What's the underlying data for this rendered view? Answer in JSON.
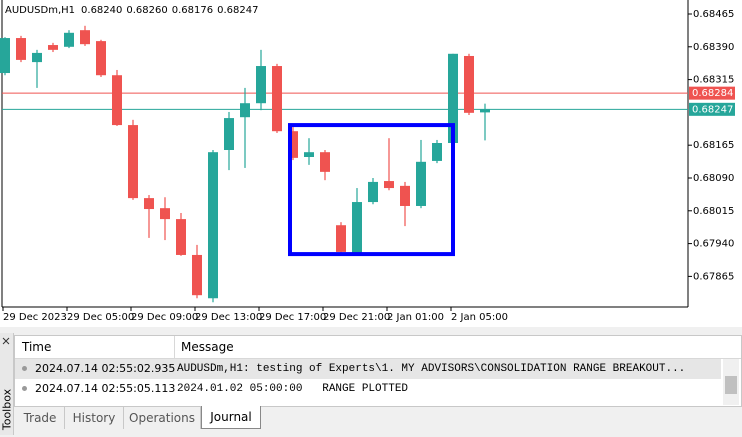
{
  "chart_data": {
    "type": "candlestick",
    "title": "AUDUSDm,H1",
    "ohlc_label": [
      "0.68240",
      "0.68260",
      "0.68176",
      "0.68247"
    ],
    "categories": [
      "29 Dec 2023",
      null,
      null,
      null,
      "29 Dec 05:00",
      null,
      null,
      null,
      "29 Dec 09:00",
      null,
      null,
      null,
      "29 Dec 13:00",
      null,
      null,
      null,
      "29 Dec 17:00",
      null,
      null,
      null,
      "29 Dec 21:00",
      null,
      null,
      null,
      "2 Jan 01:00",
      null,
      null,
      null,
      "2 Jan 05:00",
      null,
      null
    ],
    "open": [
      0.6833,
      0.6841,
      0.68355,
      0.68394,
      0.6839,
      0.68428,
      0.68403,
      0.68325,
      0.68211,
      0.68044,
      0.68021,
      0.67996,
      0.67914,
      0.67815,
      0.68154,
      0.68229,
      0.68261,
      0.68346,
      0.68197,
      0.68138,
      0.68149,
      0.67982,
      0.67918,
      0.68035,
      0.68083,
      0.68072,
      0.68026,
      0.68129,
      0.6817,
      0.68369,
      0.6824
    ],
    "high": [
      0.68412,
      0.68415,
      0.68383,
      0.68399,
      0.68428,
      0.68438,
      0.68406,
      0.68337,
      0.68223,
      0.68051,
      0.68046,
      0.6801,
      0.67937,
      0.68154,
      0.68241,
      0.68296,
      0.68383,
      0.68351,
      0.68211,
      0.68181,
      0.68154,
      0.67989,
      0.68067,
      0.6809,
      0.68181,
      0.68081,
      0.68177,
      0.68177,
      0.68374,
      0.68374,
      0.6826
    ],
    "low": [
      0.68325,
      0.68355,
      0.68296,
      0.68378,
      0.68387,
      0.68392,
      0.68321,
      0.68209,
      0.6804,
      0.67953,
      0.67948,
      0.67912,
      0.67815,
      0.67806,
      0.68108,
      0.68113,
      0.68245,
      0.68193,
      0.68131,
      0.6812,
      0.68085,
      0.67916,
      0.67916,
      0.6803,
      0.68062,
      0.6798,
      0.68021,
      0.68124,
      0.68165,
      0.68234,
      0.68176
    ],
    "close": [
      0.6841,
      0.6836,
      0.68376,
      0.68383,
      0.68422,
      0.68396,
      0.68325,
      0.68211,
      0.68044,
      0.68019,
      0.67996,
      0.67914,
      0.67822,
      0.68149,
      0.68227,
      0.68261,
      0.68346,
      0.68197,
      0.68136,
      0.68149,
      0.68104,
      0.67921,
      0.68035,
      0.68081,
      0.68067,
      0.68026,
      0.68127,
      0.6817,
      0.68374,
      0.68239,
      0.68247
    ],
    "up_color": "#26a69a",
    "down_color": "#ef5350",
    "ylim": [
      0.67795,
      0.68497
    ],
    "yticks": [
      0.68465,
      {
        "value": 0.6839,
        "label": "0.68390"
      },
      0.68315,
      0.68165,
      {
        "value": 0.6809,
        "label": "0.68090"
      },
      0.68015,
      {
        "value": 0.6794,
        "label": "0.67940"
      },
      0.67865
    ],
    "price_lines": [
      {
        "value": 0.68284,
        "color": "#ef5350"
      },
      {
        "value": 0.68247,
        "color": "#26a69a"
      }
    ],
    "range_box": {
      "high": 0.68211,
      "low": 0.67916,
      "end": "2 Jan 05:00",
      "color": "#0000ff"
    }
  },
  "toolbox": "Toolbox",
  "journal": {
    "columns": [
      "Time",
      "Message"
    ],
    "rows": [
      [
        "2024.07.14 02:55:02.935",
        "AUDUSDm,H1: testing of Experts\\1. MY ADVISORS\\CONSOLIDATION RANGE BREAKOUT..."
      ],
      [
        "2024.07.14 02:55:05.113",
        "2024.01.02 05:00:00   RANGE PLOTTED"
      ]
    ]
  },
  "tabs": [
    "Trade",
    "History",
    "Operations",
    "Journal"
  ]
}
